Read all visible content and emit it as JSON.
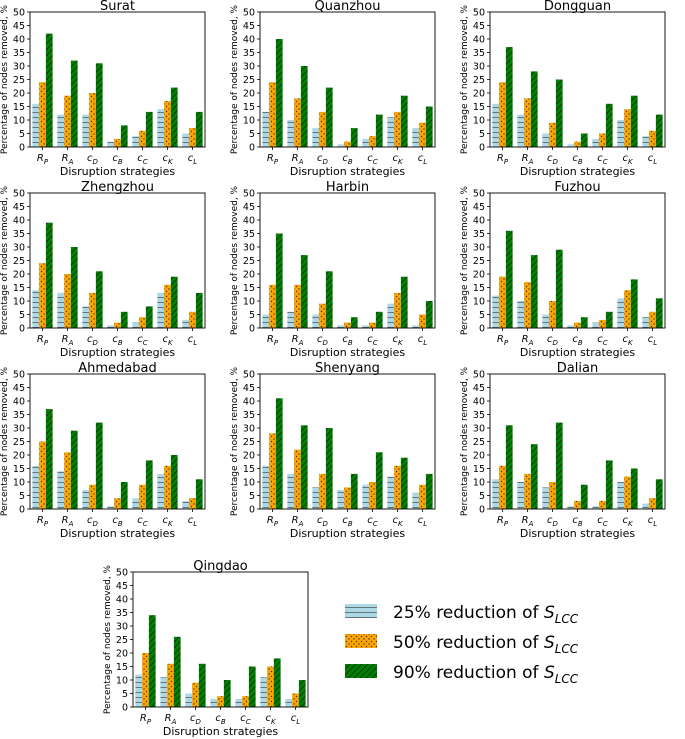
{
  "strategy_labels": [
    {
      "base": "R",
      "sub": "P"
    },
    {
      "base": "R",
      "sub": "A"
    },
    {
      "base": "c",
      "sub": "D"
    },
    {
      "base": "c",
      "sub": "B"
    },
    {
      "base": "c",
      "sub": "C"
    },
    {
      "base": "c",
      "sub": "K"
    },
    {
      "base": "c",
      "sub": "L"
    }
  ],
  "xlabel": "Disruption strategies",
  "ylabel": "Percentage of nodes removed, %",
  "ylim": [
    0,
    50
  ],
  "yticks": [
    "0",
    "5",
    "10",
    "15",
    "20",
    "25",
    "30",
    "35",
    "40",
    "45",
    "50"
  ],
  "legend": [
    {
      "prefix": "25% reduction of ",
      "base": "S",
      "sub": "LCC",
      "color": "#add8e6",
      "hatch": "lines"
    },
    {
      "prefix": "50% reduction of ",
      "base": "S",
      "sub": "LCC",
      "color": "#ffa500",
      "hatch": "dots"
    },
    {
      "prefix": "90% reduction of ",
      "base": "S",
      "sub": "LCC",
      "color": "#008000",
      "hatch": "slashes"
    }
  ],
  "chart_data": [
    {
      "type": "bar",
      "title": "Surat",
      "categories": [
        "RP",
        "RA",
        "cD",
        "cB",
        "cC",
        "cK",
        "cL"
      ],
      "series": [
        {
          "name": "25% reduction of SLCC",
          "values": [
            16,
            12,
            12,
            2,
            4,
            14,
            5
          ]
        },
        {
          "name": "50% reduction of SLCC",
          "values": [
            24,
            19,
            20,
            3,
            6,
            17,
            7
          ]
        },
        {
          "name": "90% reduction of SLCC",
          "values": [
            42,
            32,
            31,
            8,
            13,
            22,
            13
          ]
        }
      ]
    },
    {
      "type": "bar",
      "title": "Quanzhou",
      "categories": [
        "RP",
        "RA",
        "cD",
        "cB",
        "cC",
        "cK",
        "cL"
      ],
      "series": [
        {
          "name": "25% reduction of SLCC",
          "values": [
            13,
            10,
            7,
            1,
            3,
            11,
            7
          ]
        },
        {
          "name": "50% reduction of SLCC",
          "values": [
            24,
            18,
            13,
            2,
            4,
            13,
            9
          ]
        },
        {
          "name": "90% reduction of SLCC",
          "values": [
            40,
            30,
            22,
            7,
            12,
            19,
            15
          ]
        }
      ]
    },
    {
      "type": "bar",
      "title": "Dongguan",
      "categories": [
        "RP",
        "RA",
        "cD",
        "cB",
        "cC",
        "cK",
        "cL"
      ],
      "series": [
        {
          "name": "25% reduction of SLCC",
          "values": [
            16,
            12,
            5,
            1,
            3,
            10,
            4
          ]
        },
        {
          "name": "50% reduction of SLCC",
          "values": [
            24,
            18,
            9,
            2,
            5,
            14,
            6
          ]
        },
        {
          "name": "90% reduction of SLCC",
          "values": [
            37,
            28,
            25,
            5,
            16,
            19,
            12
          ]
        }
      ]
    },
    {
      "type": "bar",
      "title": "Zhengzhou",
      "categories": [
        "RP",
        "RA",
        "cD",
        "cB",
        "cC",
        "cK",
        "cL"
      ],
      "series": [
        {
          "name": "25% reduction of SLCC",
          "values": [
            14,
            13,
            8,
            1,
            2,
            13,
            3
          ]
        },
        {
          "name": "50% reduction of SLCC",
          "values": [
            24,
            20,
            13,
            2,
            4,
            16,
            6
          ]
        },
        {
          "name": "90% reduction of SLCC",
          "values": [
            39,
            30,
            21,
            6,
            8,
            19,
            13
          ]
        }
      ]
    },
    {
      "type": "bar",
      "title": "Harbin",
      "categories": [
        "RP",
        "RA",
        "cD",
        "cB",
        "cC",
        "cK",
        "cL"
      ],
      "series": [
        {
          "name": "25% reduction of SLCC",
          "values": [
            5,
            6,
            5,
            1,
            1,
            9,
            1
          ]
        },
        {
          "name": "50% reduction of SLCC",
          "values": [
            16,
            16,
            9,
            2,
            2,
            13,
            5
          ]
        },
        {
          "name": "90% reduction of SLCC",
          "values": [
            35,
            27,
            21,
            4,
            6,
            19,
            10
          ]
        }
      ]
    },
    {
      "type": "bar",
      "title": "Fuzhou",
      "categories": [
        "RP",
        "RA",
        "cD",
        "cB",
        "cC",
        "cK",
        "cL"
      ],
      "series": [
        {
          "name": "25% reduction of SLCC",
          "values": [
            12,
            10,
            5,
            1,
            2,
            11,
            4
          ]
        },
        {
          "name": "50% reduction of SLCC",
          "values": [
            19,
            17,
            10,
            2,
            3,
            14,
            6
          ]
        },
        {
          "name": "90% reduction of SLCC",
          "values": [
            36,
            27,
            29,
            4,
            6,
            18,
            11
          ]
        }
      ]
    },
    {
      "type": "bar",
      "title": "Ahmedabad",
      "categories": [
        "RP",
        "RA",
        "cD",
        "cB",
        "cC",
        "cK",
        "cL"
      ],
      "series": [
        {
          "name": "25% reduction of SLCC",
          "values": [
            16,
            14,
            7,
            1,
            4,
            13,
            3
          ]
        },
        {
          "name": "50% reduction of SLCC",
          "values": [
            25,
            21,
            9,
            4,
            9,
            16,
            4
          ]
        },
        {
          "name": "90% reduction of SLCC",
          "values": [
            37,
            29,
            32,
            10,
            18,
            20,
            11
          ]
        }
      ]
    },
    {
      "type": "bar",
      "title": "Shenyang",
      "categories": [
        "RP",
        "RA",
        "cD",
        "cB",
        "cC",
        "cK",
        "cL"
      ],
      "series": [
        {
          "name": "25% reduction of SLCC",
          "values": [
            16,
            13,
            8,
            7,
            9,
            12,
            6
          ]
        },
        {
          "name": "50% reduction of SLCC",
          "values": [
            28,
            22,
            13,
            8,
            10,
            16,
            9
          ]
        },
        {
          "name": "90% reduction of SLCC",
          "values": [
            41,
            31,
            30,
            13,
            21,
            19,
            13
          ]
        }
      ]
    },
    {
      "type": "bar",
      "title": "Dalian",
      "categories": [
        "RP",
        "RA",
        "cD",
        "cB",
        "cC",
        "cK",
        "cL"
      ],
      "series": [
        {
          "name": "25% reduction of SLCC",
          "values": [
            11,
            10,
            8,
            1,
            1,
            10,
            2
          ]
        },
        {
          "name": "50% reduction of SLCC",
          "values": [
            16,
            13,
            10,
            3,
            3,
            12,
            4
          ]
        },
        {
          "name": "90% reduction of SLCC",
          "values": [
            31,
            24,
            32,
            9,
            18,
            15,
            11
          ]
        }
      ]
    },
    {
      "type": "bar",
      "title": "Qingdao",
      "categories": [
        "RP",
        "RA",
        "cD",
        "cB",
        "cC",
        "cK",
        "cL"
      ],
      "series": [
        {
          "name": "25% reduction of SLCC",
          "values": [
            12,
            11,
            5,
            3,
            3,
            11,
            3
          ]
        },
        {
          "name": "50% reduction of SLCC",
          "values": [
            20,
            16,
            9,
            4,
            4,
            15,
            5
          ]
        },
        {
          "name": "90% reduction of SLCC",
          "values": [
            34,
            26,
            16,
            10,
            15,
            18,
            10
          ]
        }
      ]
    }
  ]
}
